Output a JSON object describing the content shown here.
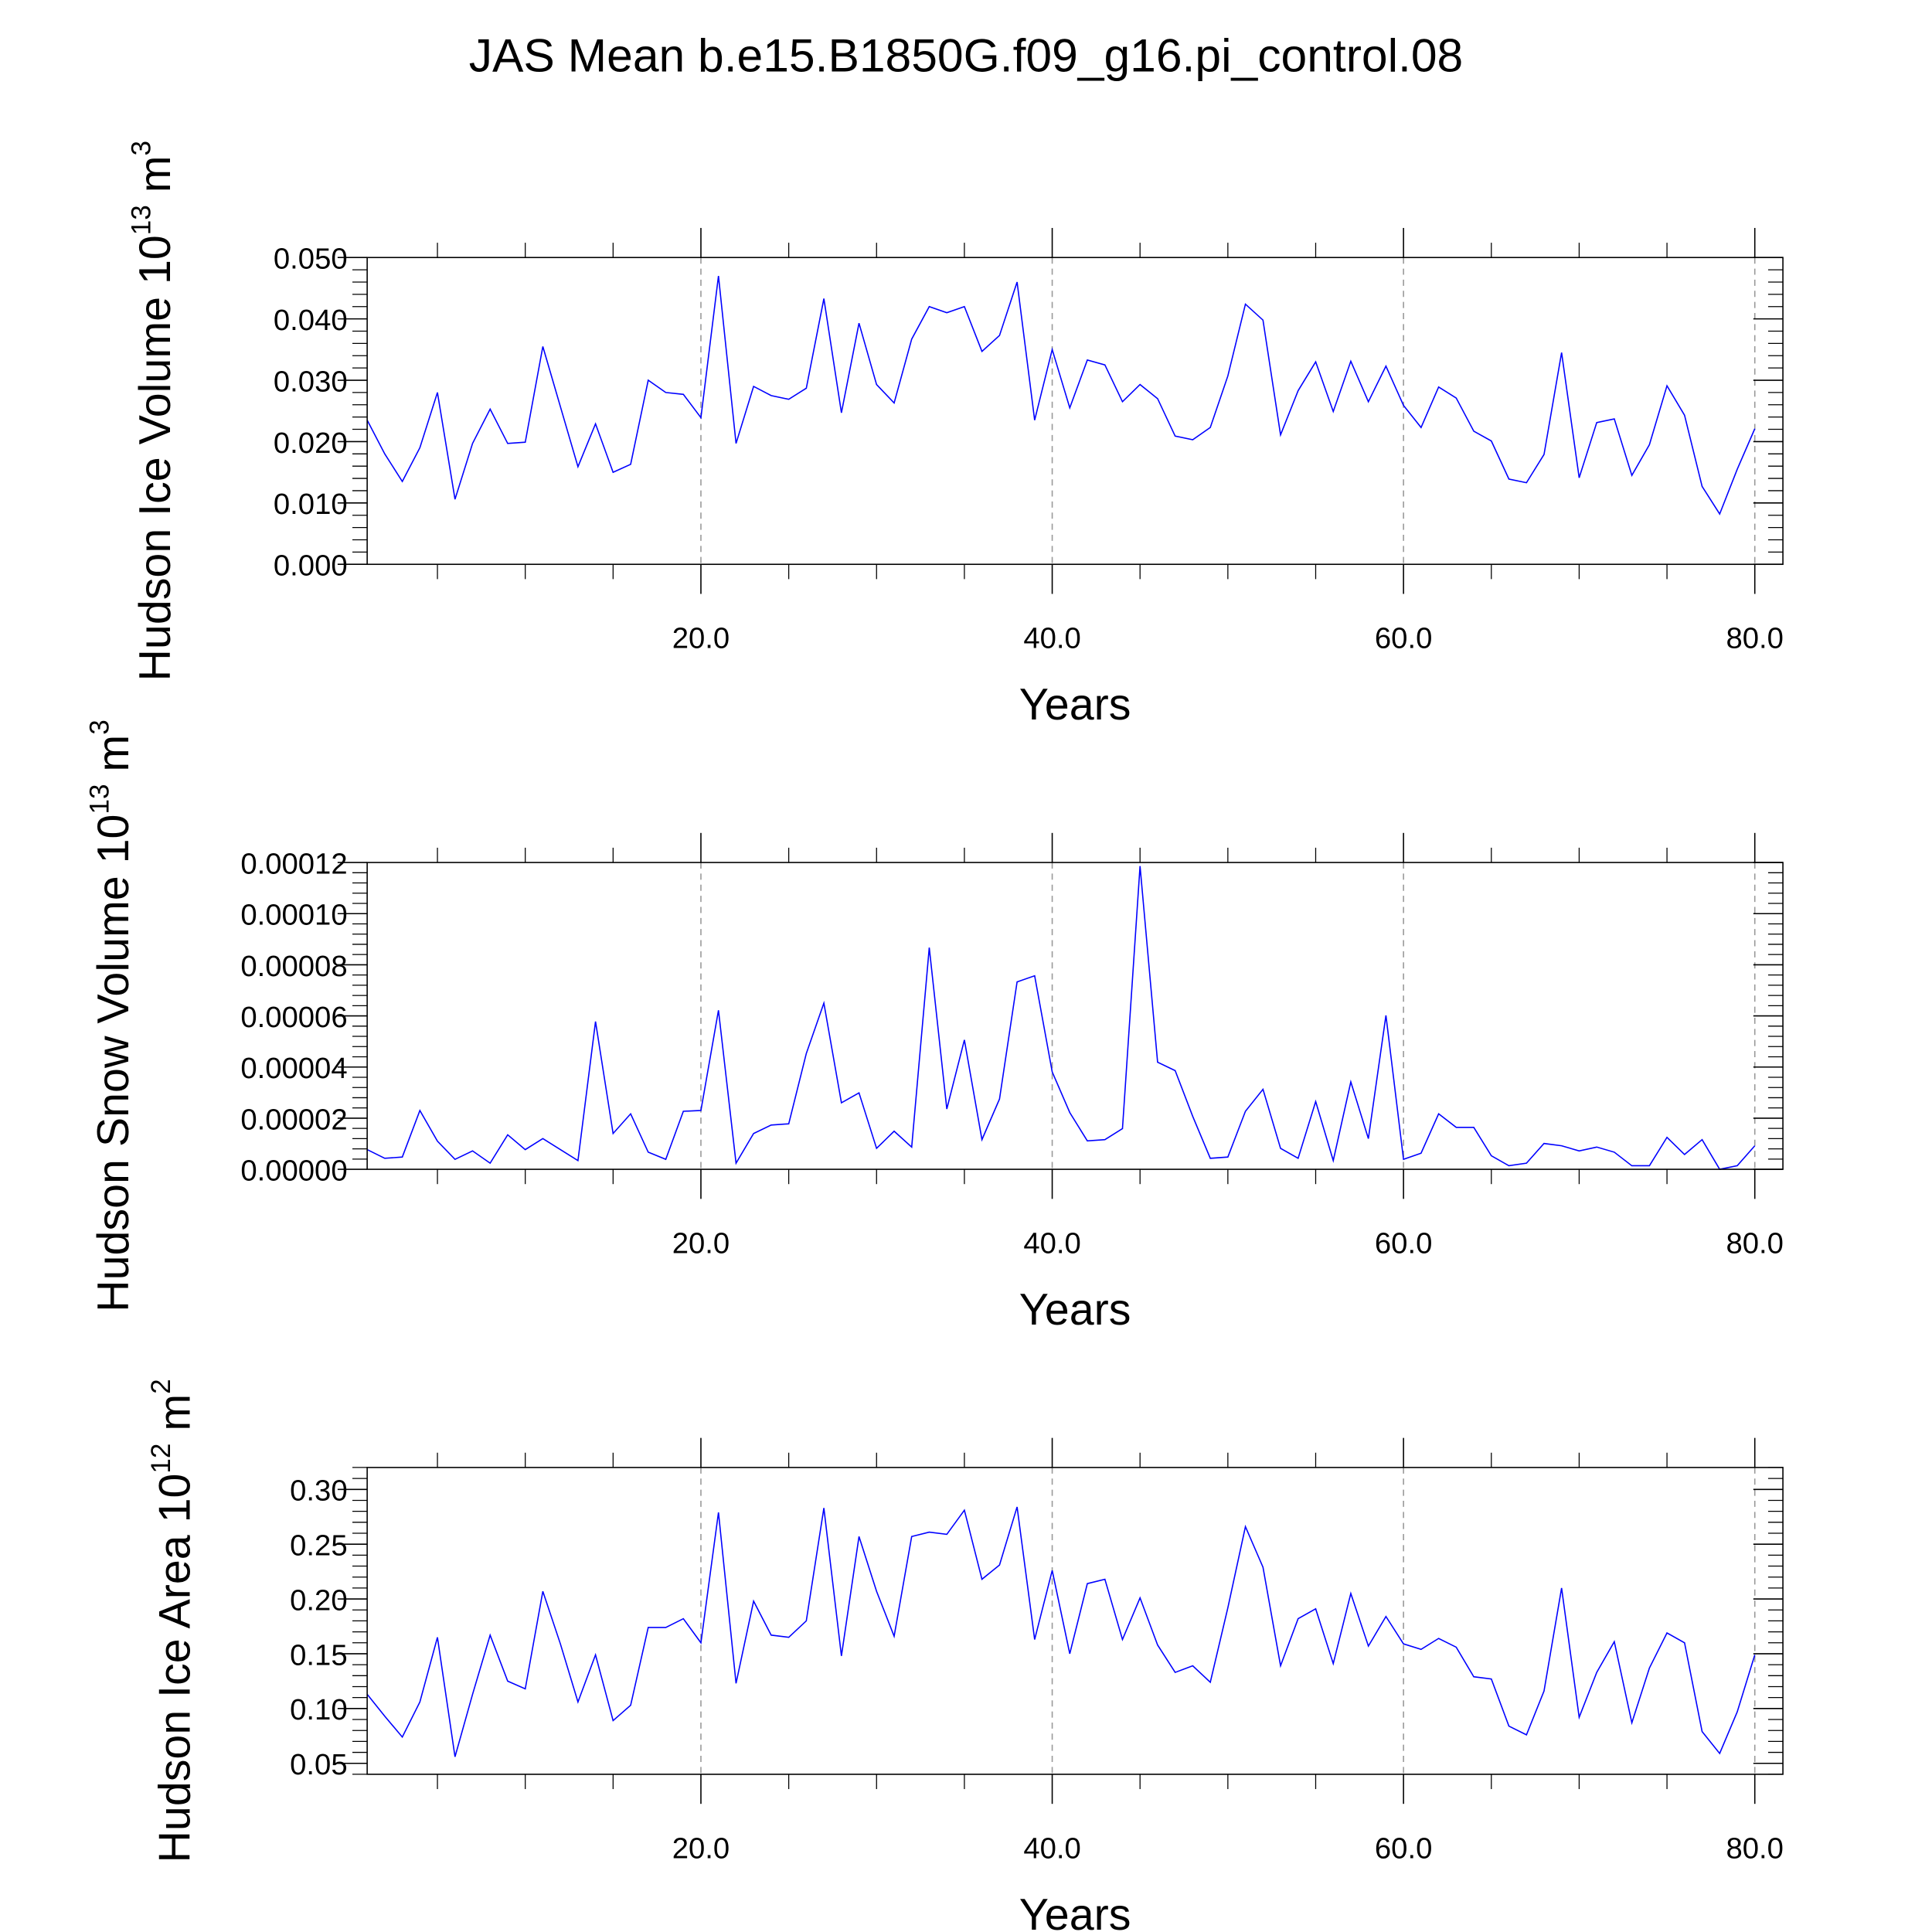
{
  "title": "JAS Mean b.e15.B1850G.f09_g16.pi_control.08",
  "chart_data": [
    {
      "type": "line",
      "ylabel": "Hudson Ice Volume 10",
      "ylabel_power": "13",
      "yunit": "m",
      "yunit_power": "3",
      "xlabel": "Years",
      "x": [
        1,
        2,
        3,
        4,
        5,
        6,
        7,
        8,
        9,
        10,
        11,
        12,
        13,
        14,
        15,
        16,
        17,
        18,
        19,
        20,
        21,
        22,
        23,
        24,
        25,
        26,
        27,
        28,
        29,
        30,
        31,
        32,
        33,
        34,
        35,
        36,
        37,
        38,
        39,
        40,
        41,
        42,
        43,
        44,
        45,
        46,
        47,
        48,
        49,
        50,
        51,
        52,
        53,
        54,
        55,
        56,
        57,
        58,
        59,
        60,
        61,
        62,
        63,
        64,
        65,
        66,
        67,
        68,
        69,
        70,
        71,
        72,
        73,
        74,
        75,
        76,
        77,
        78,
        79,
        80
      ],
      "color": "#0000ff",
      "grid": true,
      "values": [
        0.0235,
        0.018,
        0.0135,
        0.019,
        0.028,
        0.0106,
        0.0197,
        0.0253,
        0.0197,
        0.0199,
        0.0355,
        0.0257,
        0.0159,
        0.0229,
        0.015,
        0.0163,
        0.03,
        0.028,
        0.0277,
        0.0239,
        0.047,
        0.0197,
        0.029,
        0.0275,
        0.0269,
        0.0287,
        0.0433,
        0.0247,
        0.0393,
        0.0293,
        0.0263,
        0.0367,
        0.042,
        0.041,
        0.042,
        0.0347,
        0.0373,
        0.046,
        0.0235,
        0.035,
        0.0255,
        0.0333,
        0.0325,
        0.0265,
        0.0293,
        0.027,
        0.0209,
        0.0203,
        0.0223,
        0.0307,
        0.0424,
        0.0398,
        0.0211,
        0.0283,
        0.033,
        0.0249,
        0.0331,
        0.0265,
        0.0323,
        0.0259,
        0.0223,
        0.0289,
        0.0271,
        0.0217,
        0.0201,
        0.0139,
        0.0133,
        0.0179,
        0.0345,
        0.0141,
        0.0231,
        0.0237,
        0.0145,
        0.0195,
        0.0291,
        0.0243,
        0.0127,
        0.0082,
        0.0155,
        0.0221
      ],
      "xlim": [
        1,
        81.6
      ],
      "xticks": [
        {
          "value": 20,
          "label": "20.0"
        },
        {
          "value": 40,
          "label": "40.0"
        },
        {
          "value": 60,
          "label": "60.0"
        },
        {
          "value": 80,
          "label": "80.0"
        }
      ],
      "ylim": [
        0,
        0.05
      ],
      "yticks": [
        {
          "value": 0,
          "label": "0.000"
        },
        {
          "value": 0.01,
          "label": "0.010"
        },
        {
          "value": 0.02,
          "label": "0.020"
        },
        {
          "value": 0.03,
          "label": "0.030"
        },
        {
          "value": 0.04,
          "label": "0.040"
        },
        {
          "value": 0.05,
          "label": "0.050"
        }
      ]
    },
    {
      "type": "line",
      "ylabel": "Hudson Snow Volume 10",
      "ylabel_power": "13",
      "yunit": "m",
      "yunit_power": "3",
      "xlabel": "Years",
      "x": [
        1,
        2,
        3,
        4,
        5,
        6,
        7,
        8,
        9,
        10,
        11,
        12,
        13,
        14,
        15,
        16,
        17,
        18,
        19,
        20,
        21,
        22,
        23,
        24,
        25,
        26,
        27,
        28,
        29,
        30,
        31,
        32,
        33,
        34,
        35,
        36,
        37,
        38,
        39,
        40,
        41,
        42,
        43,
        44,
        45,
        46,
        47,
        48,
        49,
        50,
        51,
        52,
        53,
        54,
        55,
        56,
        57,
        58,
        59,
        60,
        61,
        62,
        63,
        64,
        65,
        66,
        67,
        68,
        69,
        70,
        71,
        72,
        73,
        74,
        75,
        76,
        77,
        78,
        79,
        80
      ],
      "color": "#0000ff",
      "grid": true,
      "values": [
        7.7e-06,
        4.3e-06,
        4.8e-06,
        2.3e-05,
        1.1e-05,
        3.9e-06,
        7.2e-06,
        2.4e-06,
        1.35e-05,
        7.7e-06,
        1.2e-05,
        7.7e-06,
        3.4e-06,
        5.78e-05,
        1.4e-05,
        2.17e-05,
        6.7e-06,
        3.9e-06,
        2.27e-05,
        2.3e-05,
        6.22e-05,
        2.4e-06,
        1.4e-05,
        1.73e-05,
        1.78e-05,
        4.53e-05,
        6.5e-05,
        2.6e-05,
        2.99e-05,
        8.2e-06,
        1.49e-05,
        8.7e-06,
        8.67e-05,
        2.36e-05,
        5.06e-05,
        1.16e-05,
        2.75e-05,
        7.33e-05,
        7.57e-05,
        3.81e-05,
        2.22e-05,
        1.11e-05,
        1.16e-05,
        1.59e-05,
        0.0001186,
        4.19e-05,
        3.86e-05,
        2.07e-05,
        4.3e-06,
        4.8e-06,
        2.27e-05,
        3.13e-05,
        8.2e-06,
        4.3e-06,
        2.65e-05,
        3.4e-06,
        3.42e-05,
        1.2e-05,
        6.02e-05,
        3.9e-06,
        6.3e-06,
        2.17e-05,
        1.64e-05,
        1.64e-05,
        5.3e-06,
        1.4e-06,
        2.4e-06,
        1.01e-05,
        9.2e-06,
        7.2e-06,
        8.7e-06,
        6.7e-06,
        1.4e-06,
        1.4e-06,
        1.25e-05,
        5.8e-06,
        1.16e-05,
        0,
        1.4e-06,
        9.2e-06
      ],
      "xlim": [
        1,
        81.6
      ],
      "xticks": [
        {
          "value": 20,
          "label": "20.0"
        },
        {
          "value": 40,
          "label": "40.0"
        },
        {
          "value": 60,
          "label": "60.0"
        },
        {
          "value": 80,
          "label": "80.0"
        }
      ],
      "ylim": [
        0,
        0.00012
      ],
      "yticks": [
        {
          "value": 0,
          "label": "0.00000"
        },
        2e-05,
        4e-05,
        6e-05,
        8e-05,
        {
          "value": 0.0001,
          "label": "0.00010"
        },
        0.00012
      ]
    },
    {
      "type": "line",
      "ylabel": "Hudson Ice Area 10",
      "ylabel_power": "12",
      "yunit": "m",
      "yunit_power": "2",
      "xlabel": "Years",
      "x": [
        1,
        2,
        3,
        4,
        5,
        6,
        7,
        8,
        9,
        10,
        11,
        12,
        13,
        14,
        15,
        16,
        17,
        18,
        19,
        20,
        21,
        22,
        23,
        24,
        25,
        26,
        27,
        28,
        29,
        30,
        31,
        32,
        33,
        34,
        35,
        36,
        37,
        38,
        39,
        40,
        41,
        42,
        43,
        44,
        45,
        46,
        47,
        48,
        49,
        50,
        51,
        52,
        53,
        54,
        55,
        56,
        57,
        58,
        59,
        60,
        61,
        62,
        63,
        64,
        65,
        66,
        67,
        68,
        69,
        70,
        71,
        72,
        73,
        74,
        75,
        76,
        77,
        78,
        79,
        80
      ],
      "color": "#0000ff",
      "grid": true,
      "values": [
        0.113,
        0.093,
        0.074,
        0.106,
        0.165,
        0.056,
        0.113,
        0.167,
        0.125,
        0.118,
        0.207,
        0.159,
        0.106,
        0.149,
        0.089,
        0.103,
        0.174,
        0.174,
        0.182,
        0.16,
        0.279,
        0.123,
        0.198,
        0.167,
        0.165,
        0.18,
        0.283,
        0.148,
        0.257,
        0.207,
        0.166,
        0.257,
        0.261,
        0.259,
        0.281,
        0.218,
        0.231,
        0.284,
        0.163,
        0.226,
        0.15,
        0.214,
        0.218,
        0.163,
        0.201,
        0.158,
        0.133,
        0.139,
        0.124,
        0.192,
        0.266,
        0.229,
        0.139,
        0.182,
        0.191,
        0.141,
        0.205,
        0.157,
        0.184,
        0.159,
        0.154,
        0.164,
        0.156,
        0.129,
        0.127,
        0.084,
        0.076,
        0.116,
        0.21,
        0.092,
        0.133,
        0.161,
        0.087,
        0.137,
        0.169,
        0.16,
        0.079,
        0.059,
        0.097,
        0.149
      ],
      "xlim": [
        1,
        81.6
      ],
      "xticks": [
        {
          "value": 20,
          "label": "20.0"
        },
        {
          "value": 40,
          "label": "40.0"
        },
        {
          "value": 60,
          "label": "60.0"
        },
        {
          "value": 80,
          "label": "80.0"
        }
      ],
      "ylim": [
        0.04,
        0.32
      ],
      "yticks": [
        0.05,
        {
          "value": 0.1,
          "label": "0.10"
        },
        0.15,
        {
          "value": 0.2,
          "label": "0.20"
        },
        0.25,
        {
          "value": 0.3,
          "label": "0.30"
        }
      ]
    }
  ]
}
